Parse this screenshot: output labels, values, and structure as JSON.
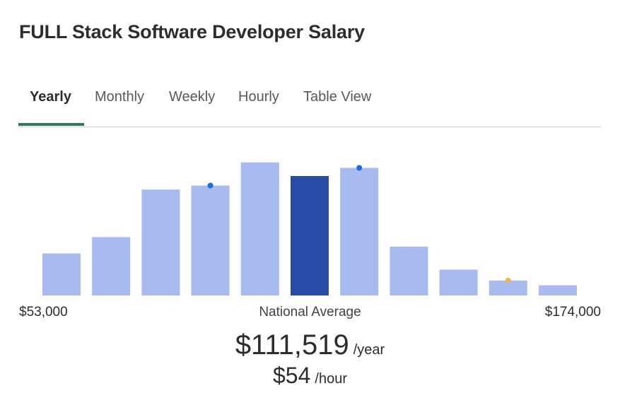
{
  "page": {
    "title": "FULL Stack Software Developer Salary"
  },
  "tabs": [
    {
      "label": "Yearly",
      "active": true
    },
    {
      "label": "Monthly",
      "active": false
    },
    {
      "label": "Weekly",
      "active": false
    },
    {
      "label": "Hourly",
      "active": false
    },
    {
      "label": "Table View",
      "active": false
    }
  ],
  "colors": {
    "bar": "#a8bbf0",
    "bar_highlight": "#284ba5",
    "marker_blue": "#1d6be0",
    "marker_orange": "#f5ad5e",
    "tab_accent": "#2a7b5f"
  },
  "chart_data": {
    "type": "bar",
    "values": [
      31,
      43,
      78,
      81,
      98,
      88,
      94,
      36,
      19,
      11,
      7.5
    ],
    "highlight_index": 5,
    "markers": [
      {
        "index": 3,
        "value": 81,
        "color": "blue"
      },
      {
        "index": 6,
        "value": 94,
        "color": "blue"
      },
      {
        "index": 9,
        "value": 11,
        "color": "orange"
      }
    ],
    "ylim": [
      0,
      100
    ],
    "grid": false,
    "legend": "none",
    "x_min_label": "$53,000",
    "x_max_label": "$174,000",
    "center_label": "National Average"
  },
  "salary": {
    "yearly_value": "$111,519",
    "yearly_unit": "/year",
    "hourly_value": "$54",
    "hourly_unit": "/hour"
  }
}
